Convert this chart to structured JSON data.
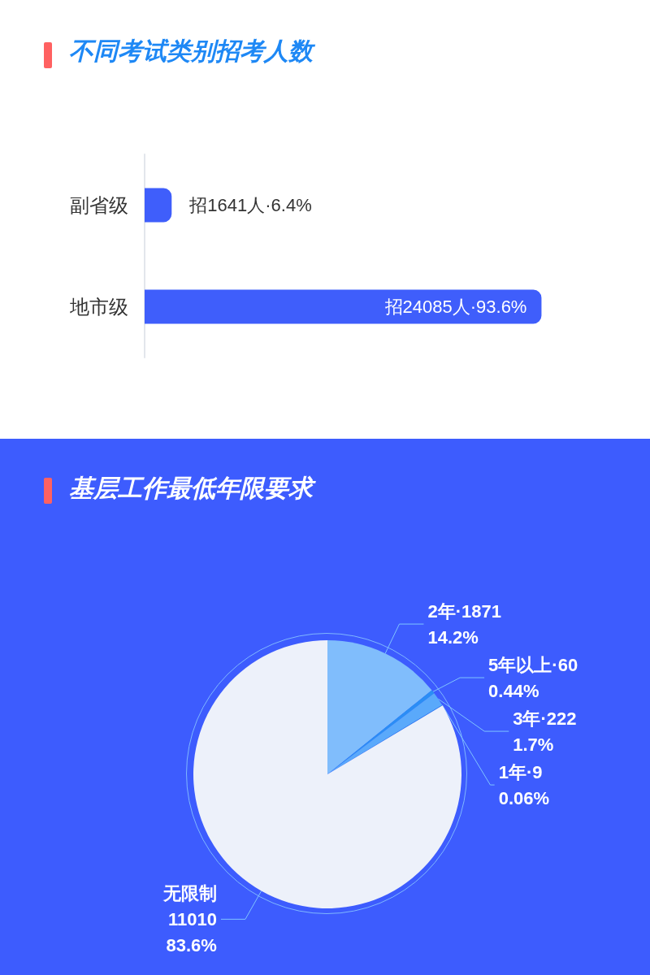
{
  "chart_data": [
    {
      "type": "bar",
      "orientation": "horizontal",
      "title": "不同考试类别招考人数",
      "categories": [
        "副省级",
        "地市级"
      ],
      "values": [
        1641,
        24085
      ],
      "color": "#3f5efb",
      "value_labels": [
        "招1641人·6.4%",
        "招24085人·93.6%"
      ]
    },
    {
      "type": "pie",
      "title": "基层工作最低年限要求",
      "categories": [
        "2年",
        "5年以上",
        "3年",
        "1年",
        "无限制"
      ],
      "values": [
        1871,
        60,
        222,
        9,
        11010
      ],
      "colors": [
        "#80bdfc",
        "#2a8ef5",
        "#5aa9fb",
        "#1e7fe8",
        "#edf1fa"
      ],
      "value_labels": [
        "·1871\n14.2%",
        "·60\n0.44%",
        "·222\n1.7%",
        "·9\n0.06%",
        "\n11010\n83.6%"
      ]
    }
  ]
}
